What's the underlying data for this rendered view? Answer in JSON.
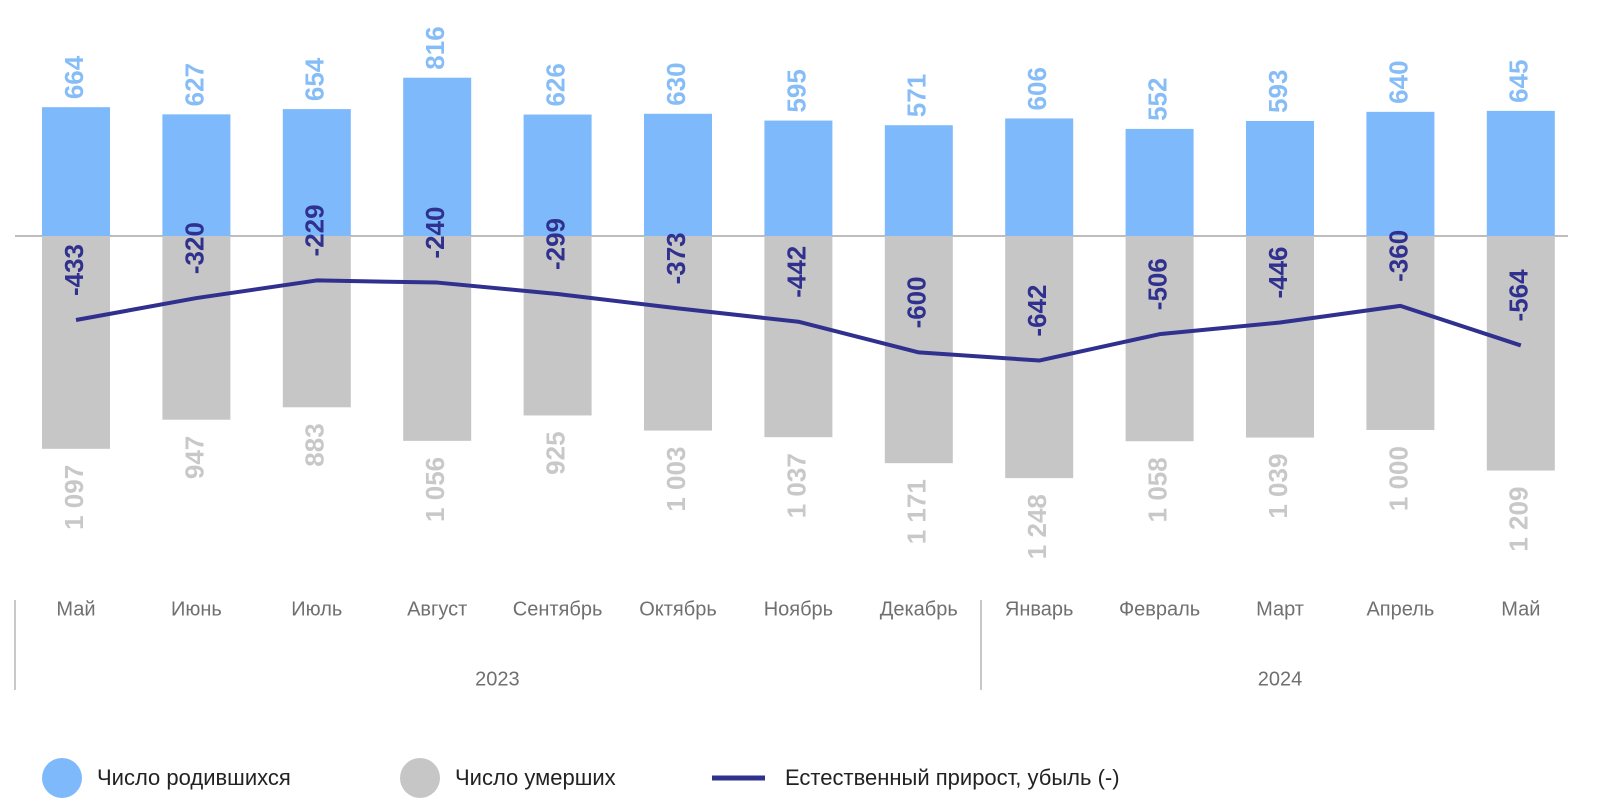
{
  "chart_data": {
    "type": "bar-line",
    "groups": [
      {
        "name": "2023",
        "categories": [
          "Май",
          "Июнь",
          "Июль",
          "Август",
          "Сентябрь",
          "Октябрь",
          "Ноябрь",
          "Декабрь"
        ]
      },
      {
        "name": "2024",
        "categories": [
          "Январь",
          "Февраль",
          "Март",
          "Апрель",
          "Май"
        ]
      }
    ],
    "series": [
      {
        "name": "Число родившихся",
        "type": "bar",
        "direction": "up",
        "color": "#7db9fb",
        "label_color": "#86bdf7",
        "values": [
          664,
          627,
          654,
          816,
          626,
          630,
          595,
          571,
          606,
          552,
          593,
          640,
          645
        ]
      },
      {
        "name": "Число умерших",
        "type": "bar",
        "direction": "down",
        "color": "#c6c6c6",
        "label_color": "#c8c8c8",
        "values": [
          1097,
          947,
          883,
          1056,
          925,
          1003,
          1037,
          1171,
          1248,
          1058,
          1039,
          1000,
          1209
        ],
        "value_labels": [
          "1 097",
          "947",
          "883",
          "1 056",
          "925",
          "1 003",
          "1 037",
          "1 171",
          "1 248",
          "1 058",
          "1 039",
          "1 000",
          "1 209"
        ]
      },
      {
        "name": "Естественный прирост, убыль (-)",
        "type": "line",
        "color": "#30308f",
        "label_color": "#30308f",
        "values": [
          -433,
          -320,
          -229,
          -240,
          -299,
          -373,
          -442,
          -600,
          -642,
          -506,
          -446,
          -360,
          -564
        ]
      }
    ]
  }
}
